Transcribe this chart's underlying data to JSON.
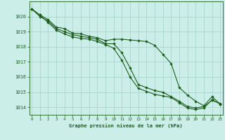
{
  "title": "Graphe pression niveau de la mer (hPa)",
  "background_color": "#cceee8",
  "grid_color": "#aad4ce",
  "line_color": "#1e5e1e",
  "marker_color": "#1e5e1e",
  "xlim": [
    -0.3,
    23.3
  ],
  "ylim": [
    1013.5,
    1021.0
  ],
  "yticks": [
    1014,
    1015,
    1016,
    1017,
    1018,
    1019,
    1020
  ],
  "xticks": [
    0,
    1,
    2,
    3,
    4,
    5,
    6,
    7,
    8,
    9,
    10,
    11,
    12,
    13,
    14,
    15,
    16,
    17,
    18,
    19,
    20,
    21,
    22,
    23
  ],
  "series": [
    [
      1020.5,
      1020.1,
      1019.8,
      1019.3,
      1019.2,
      1018.9,
      1018.85,
      1018.7,
      1018.6,
      1018.4,
      1018.5,
      1018.5,
      1018.45,
      1018.4,
      1018.35,
      1018.1,
      1017.5,
      1016.9,
      1015.3,
      1014.8,
      1014.4,
      1014.1,
      1014.7,
      1014.2
    ],
    [
      1020.5,
      1020.0,
      1019.7,
      1019.2,
      1019.0,
      1018.8,
      1018.7,
      1018.6,
      1018.5,
      1018.2,
      1018.2,
      1017.6,
      1016.6,
      1015.5,
      1015.3,
      1015.1,
      1015.0,
      1014.7,
      1014.4,
      1014.05,
      1013.95,
      1014.05,
      1014.45,
      1014.25
    ],
    [
      1020.5,
      1020.1,
      1019.6,
      1019.1,
      1018.85,
      1018.65,
      1018.55,
      1018.5,
      1018.35,
      1018.15,
      1017.9,
      1017.1,
      1016.0,
      1015.25,
      1015.05,
      1014.85,
      1014.75,
      1014.65,
      1014.3,
      1013.95,
      1013.85,
      1013.95,
      1014.5,
      1014.2
    ]
  ]
}
